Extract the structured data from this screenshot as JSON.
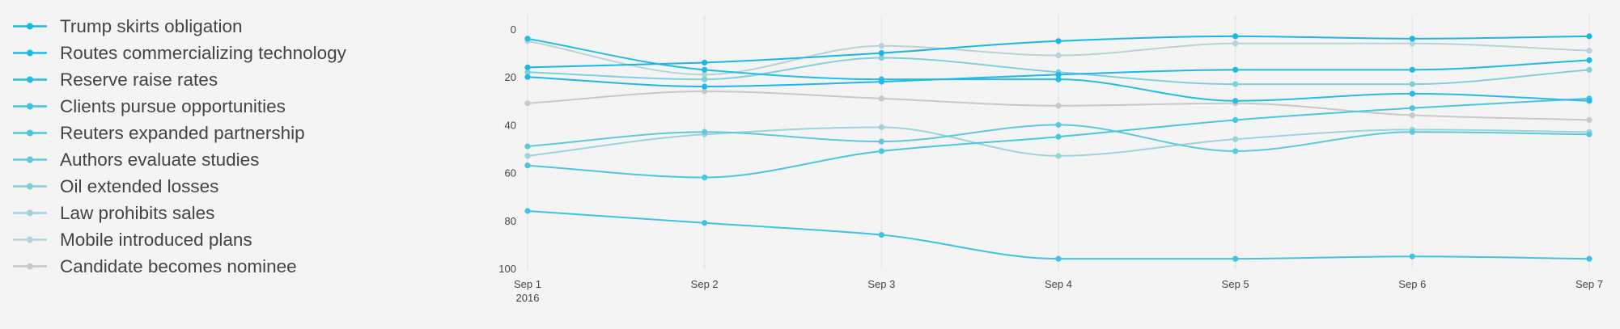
{
  "chart_data": {
    "type": "line",
    "x": [
      "Sep 1",
      "Sep 2",
      "Sep 3",
      "Sep 4",
      "Sep 5",
      "Sep 6",
      "Sep 7"
    ],
    "x_year_label": "2016",
    "ylim": [
      0,
      100
    ],
    "y_reversed": true,
    "y_ticks": [
      0,
      20,
      40,
      60,
      80,
      100
    ],
    "grid": "vertical",
    "legend_position": "left",
    "series": [
      {
        "name": "Trump skirts obligation",
        "color": "#1bb6e8",
        "values": [
          16,
          14,
          10,
          5,
          3,
          4,
          3
        ]
      },
      {
        "name": "Routes commercializing technology",
        "color": "#1fb8e9",
        "values": [
          20,
          24,
          22,
          19,
          17,
          17,
          13
        ]
      },
      {
        "name": "Reserve raise rates",
        "color": "#26bbe8",
        "values": [
          4,
          17,
          21,
          21,
          30,
          27,
          30
        ]
      },
      {
        "name": "Clients pursue opportunities",
        "color": "#40c3e3",
        "values": [
          76,
          81,
          86,
          96,
          96,
          95,
          96
        ]
      },
      {
        "name": "Reuters expanded partnership",
        "color": "#4ac6e0",
        "values": [
          57,
          62,
          51,
          45,
          38,
          33,
          29
        ]
      },
      {
        "name": "Authors evaluate studies",
        "color": "#5ec9dc",
        "values": [
          49,
          43,
          47,
          40,
          51,
          43,
          44
        ]
      },
      {
        "name": "Oil extended losses",
        "color": "#80d0dc",
        "values": [
          18,
          21,
          12,
          18,
          23,
          23,
          17
        ]
      },
      {
        "name": "Law prohibits sales",
        "color": "#9ed3d9",
        "values": [
          53,
          44,
          41,
          53,
          46,
          42,
          43
        ]
      },
      {
        "name": "Mobile introduced plans",
        "color": "#b7d3d8",
        "values": [
          5,
          19,
          7,
          11,
          6,
          6,
          9
        ]
      },
      {
        "name": "Candidate becomes nominee",
        "color": "#c8c8c8",
        "values": [
          31,
          26,
          29,
          32,
          31,
          36,
          38
        ]
      }
    ]
  }
}
